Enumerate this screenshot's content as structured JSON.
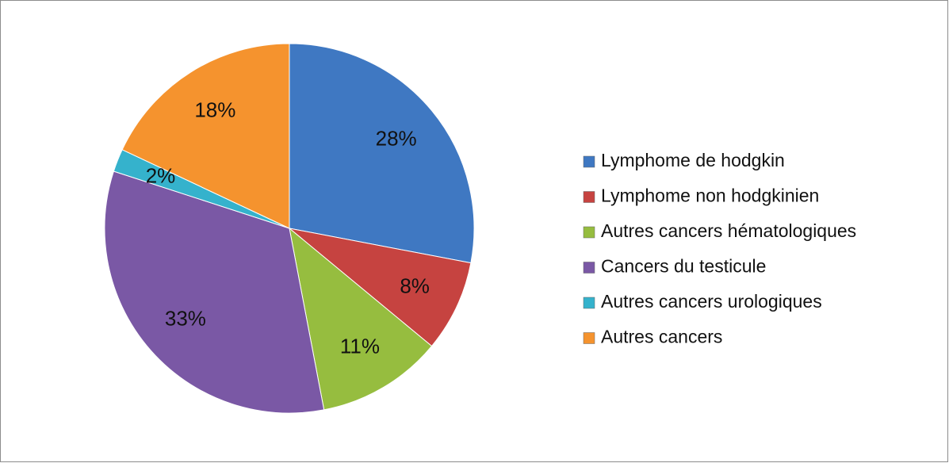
{
  "chart_data": {
    "type": "pie",
    "categories": [
      "Lymphome de hodgkin",
      "Lymphome non hodgkinien",
      "Autres cancers hématologiques",
      "Cancers du testicule",
      "Autres cancers urologiques",
      "Autres cancers"
    ],
    "values": [
      28,
      8,
      11,
      33,
      2,
      18
    ],
    "value_labels": [
      "28%",
      "8%",
      "11%",
      "33%",
      "2%",
      "18%"
    ],
    "colors": [
      "#3f78c2",
      "#c64340",
      "#96bd3f",
      "#7a58a5",
      "#35b2cc",
      "#f5932e"
    ],
    "legend": "right"
  }
}
